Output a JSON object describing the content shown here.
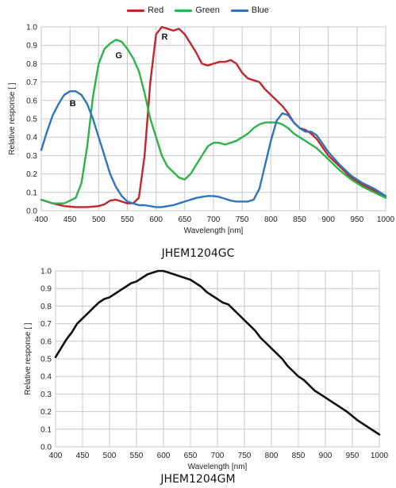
{
  "chart_data": [
    {
      "type": "line",
      "caption": "JHEM1204GC",
      "xlabel": "Wavelength [nm]",
      "ylabel": "Relative response [ ]",
      "xlim": [
        400,
        1000
      ],
      "ylim": [
        0,
        1.0
      ],
      "xticks": [
        400,
        450,
        500,
        550,
        600,
        650,
        700,
        750,
        800,
        850,
        900,
        950,
        1000
      ],
      "yticks": [
        0.0,
        0.1,
        0.2,
        0.3,
        0.4,
        0.5,
        0.6,
        0.7,
        0.8,
        0.9,
        1.0
      ],
      "grid": true,
      "legend_position": "top-center",
      "series": [
        {
          "name": "Red",
          "color": "#c0272d",
          "x": [
            400,
            420,
            440,
            460,
            480,
            500,
            510,
            520,
            530,
            540,
            550,
            560,
            570,
            580,
            590,
            600,
            610,
            620,
            630,
            640,
            650,
            660,
            670,
            680,
            690,
            700,
            710,
            720,
            730,
            740,
            750,
            760,
            770,
            780,
            790,
            800,
            810,
            820,
            830,
            840,
            850,
            860,
            870,
            880,
            900,
            920,
            940,
            960,
            980,
            1000
          ],
          "y": [
            0.06,
            0.04,
            0.025,
            0.02,
            0.02,
            0.025,
            0.035,
            0.055,
            0.06,
            0.05,
            0.04,
            0.04,
            0.07,
            0.3,
            0.7,
            0.96,
            1.0,
            0.99,
            0.98,
            0.99,
            0.96,
            0.91,
            0.86,
            0.8,
            0.79,
            0.8,
            0.81,
            0.81,
            0.82,
            0.8,
            0.75,
            0.72,
            0.71,
            0.7,
            0.66,
            0.63,
            0.6,
            0.57,
            0.53,
            0.48,
            0.45,
            0.44,
            0.42,
            0.39,
            0.3,
            0.24,
            0.18,
            0.14,
            0.11,
            0.08
          ]
        },
        {
          "name": "Green",
          "color": "#2db34a",
          "x": [
            400,
            420,
            440,
            460,
            470,
            480,
            490,
            500,
            510,
            520,
            530,
            540,
            550,
            560,
            570,
            580,
            590,
            600,
            610,
            620,
            630,
            640,
            650,
            660,
            670,
            680,
            690,
            700,
            710,
            720,
            730,
            740,
            750,
            760,
            770,
            780,
            790,
            800,
            810,
            820,
            830,
            840,
            850,
            860,
            870,
            880,
            900,
            920,
            940,
            960,
            980,
            1000
          ],
          "y": [
            0.06,
            0.04,
            0.04,
            0.07,
            0.15,
            0.35,
            0.62,
            0.8,
            0.88,
            0.91,
            0.93,
            0.92,
            0.88,
            0.83,
            0.76,
            0.64,
            0.5,
            0.4,
            0.3,
            0.24,
            0.21,
            0.18,
            0.17,
            0.2,
            0.25,
            0.3,
            0.35,
            0.37,
            0.37,
            0.36,
            0.37,
            0.38,
            0.4,
            0.42,
            0.45,
            0.47,
            0.48,
            0.48,
            0.48,
            0.47,
            0.45,
            0.42,
            0.4,
            0.38,
            0.36,
            0.34,
            0.28,
            0.22,
            0.17,
            0.13,
            0.1,
            0.07
          ]
        },
        {
          "name": "Blue",
          "color": "#2f74c0",
          "x": [
            400,
            410,
            420,
            430,
            440,
            450,
            460,
            470,
            480,
            490,
            500,
            510,
            520,
            530,
            540,
            550,
            560,
            570,
            580,
            590,
            600,
            610,
            620,
            630,
            640,
            650,
            660,
            670,
            680,
            690,
            700,
            710,
            720,
            730,
            740,
            750,
            760,
            770,
            780,
            790,
            800,
            810,
            820,
            830,
            840,
            850,
            860,
            870,
            880,
            900,
            920,
            940,
            960,
            980,
            1000
          ],
          "y": [
            0.33,
            0.43,
            0.52,
            0.58,
            0.63,
            0.65,
            0.65,
            0.63,
            0.58,
            0.5,
            0.4,
            0.3,
            0.2,
            0.13,
            0.08,
            0.05,
            0.04,
            0.03,
            0.03,
            0.025,
            0.02,
            0.02,
            0.025,
            0.03,
            0.04,
            0.05,
            0.06,
            0.07,
            0.075,
            0.08,
            0.08,
            0.075,
            0.065,
            0.055,
            0.05,
            0.05,
            0.05,
            0.06,
            0.12,
            0.25,
            0.38,
            0.49,
            0.53,
            0.52,
            0.48,
            0.45,
            0.43,
            0.43,
            0.41,
            0.32,
            0.25,
            0.19,
            0.15,
            0.12,
            0.08
          ]
        }
      ],
      "annotations": [
        {
          "text": "B",
          "x": 455,
          "y": 0.57
        },
        {
          "text": "G",
          "x": 535,
          "y": 0.83
        },
        {
          "text": "R",
          "x": 615,
          "y": 0.93
        }
      ]
    },
    {
      "type": "line",
      "caption": "JHEM1204GM",
      "xlabel": "Wavelength [nm]",
      "ylabel": "Relative response [ ]",
      "xlim": [
        400,
        1000
      ],
      "ylim": [
        0,
        1.0
      ],
      "xticks": [
        400,
        450,
        500,
        550,
        600,
        650,
        700,
        750,
        800,
        850,
        900,
        950,
        1000
      ],
      "yticks": [
        0.0,
        0.1,
        0.2,
        0.3,
        0.4,
        0.5,
        0.6,
        0.7,
        0.8,
        0.9,
        1.0
      ],
      "grid": true,
      "series": [
        {
          "color": "#111111",
          "x": [
            400,
            410,
            420,
            430,
            440,
            450,
            460,
            470,
            480,
            490,
            500,
            510,
            520,
            530,
            540,
            550,
            560,
            570,
            580,
            590,
            600,
            610,
            620,
            630,
            640,
            650,
            660,
            670,
            680,
            690,
            700,
            710,
            720,
            730,
            740,
            750,
            760,
            770,
            780,
            790,
            800,
            810,
            820,
            830,
            840,
            850,
            860,
            870,
            880,
            890,
            900,
            920,
            940,
            960,
            980,
            1000
          ],
          "y": [
            0.51,
            0.56,
            0.61,
            0.65,
            0.7,
            0.73,
            0.76,
            0.79,
            0.82,
            0.84,
            0.85,
            0.87,
            0.89,
            0.91,
            0.93,
            0.94,
            0.96,
            0.98,
            0.99,
            1.0,
            1.0,
            0.99,
            0.98,
            0.97,
            0.96,
            0.95,
            0.93,
            0.91,
            0.88,
            0.86,
            0.84,
            0.82,
            0.81,
            0.78,
            0.75,
            0.72,
            0.69,
            0.66,
            0.62,
            0.59,
            0.56,
            0.53,
            0.5,
            0.46,
            0.43,
            0.4,
            0.38,
            0.35,
            0.32,
            0.3,
            0.28,
            0.24,
            0.2,
            0.15,
            0.11,
            0.07
          ]
        }
      ]
    }
  ]
}
